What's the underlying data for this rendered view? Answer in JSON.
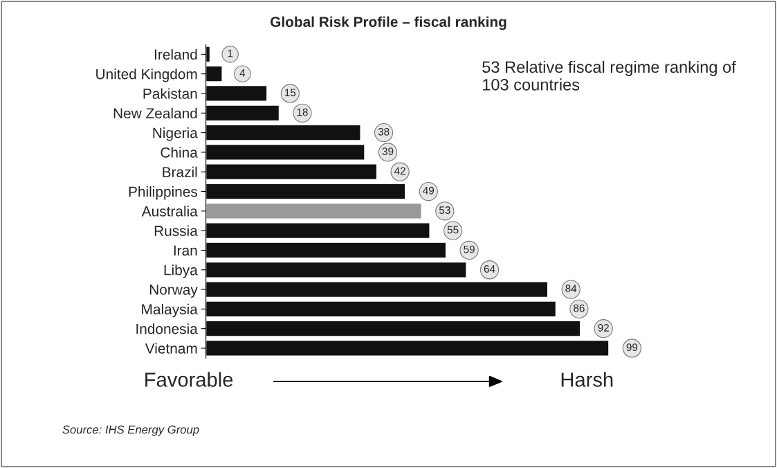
{
  "chart_data": {
    "type": "bar",
    "orientation": "horizontal",
    "data_labels": true,
    "title": "Global Risk Profile – fiscal ranking",
    "categories": [
      "Ireland",
      "United Kingdom",
      "Pakistan",
      "New Zealand",
      "Nigeria",
      "China",
      "Brazil",
      "Philippines",
      "Australia",
      "Russia",
      "Iran",
      "Libya",
      "Norway",
      "Malaysia",
      "Indonesia",
      "Vietnam"
    ],
    "values": [
      1,
      4,
      15,
      18,
      38,
      39,
      42,
      49,
      53,
      55,
      59,
      64,
      84,
      86,
      92,
      99
    ],
    "colors": [
      "#111111",
      "#111111",
      "#111111",
      "#111111",
      "#111111",
      "#111111",
      "#111111",
      "#111111",
      "#999999",
      "#111111",
      "#111111",
      "#111111",
      "#111111",
      "#111111",
      "#111111",
      "#111111"
    ],
    "annotations": [
      "53 Relative fiscal regime ranking of 103 countries",
      "Favorable",
      "Harsh",
      "Source: IHS Energy Group"
    ],
    "grid": false,
    "legend": false
  }
}
